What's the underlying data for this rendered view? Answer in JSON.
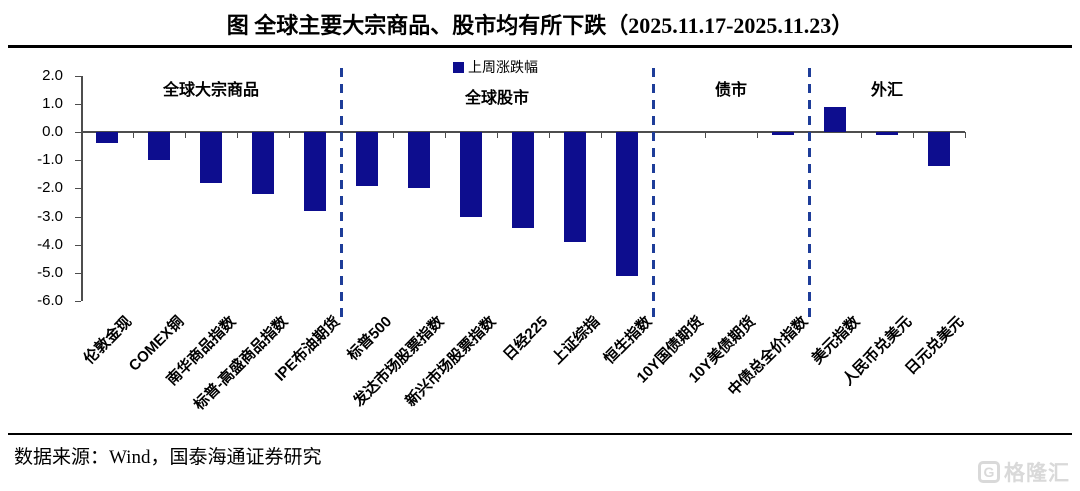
{
  "header": {
    "title": "图  全球主要大宗商品、股市均有所下跌（2025.11.17-2025.11.23）"
  },
  "legend": {
    "label": "上周涨跌幅"
  },
  "footer": {
    "source": "数据来源：Wind，国泰海通证券研究",
    "watermark": "格隆汇",
    "watermark_logo": "G"
  },
  "colors": {
    "bar": "#0d0d8e",
    "separator": "#1e3d99",
    "axis": "#4d4d4d",
    "watermark": "#d9d9d9"
  },
  "chart_data": {
    "type": "bar",
    "title": "全球主要大宗商品、股市均有所下跌（2025.11.17-2025.11.23）",
    "series_name": "上周涨跌幅",
    "categories": [
      "伦敦金现",
      "COMEX铜",
      "南华商品指数",
      "标普-高盛商品指数",
      "IPE布油期货",
      "标普500",
      "发达市场股票指数",
      "新兴市场股票指数",
      "日经225",
      "上证综指",
      "恒生指数",
      "10Y国债期货",
      "10Y美债期货",
      "中债总全价指数",
      "美元指数",
      "人民币兑美元",
      "日元兑美元"
    ],
    "values": [
      -0.4,
      -1.0,
      -1.8,
      -2.2,
      -2.8,
      -1.9,
      -2.0,
      -3.0,
      -3.4,
      -3.9,
      -5.1,
      0.0,
      0.0,
      -0.1,
      0.9,
      -0.1,
      -1.2
    ],
    "yticks": [
      2.0,
      1.0,
      0.0,
      -1.0,
      -2.0,
      -3.0,
      -4.0,
      -5.0,
      -6.0
    ],
    "ylim": [
      -6.0,
      2.0
    ],
    "xlabel": "",
    "ylabel": "",
    "grid": false,
    "legend_position": "top-center",
    "sections": [
      {
        "label": "全球大宗商品",
        "start": 0,
        "end": 5
      },
      {
        "label": "全球股市",
        "start": 5,
        "end": 11
      },
      {
        "label": "债市",
        "start": 11,
        "end": 14
      },
      {
        "label": "外汇",
        "start": 14,
        "end": 17
      }
    ]
  }
}
